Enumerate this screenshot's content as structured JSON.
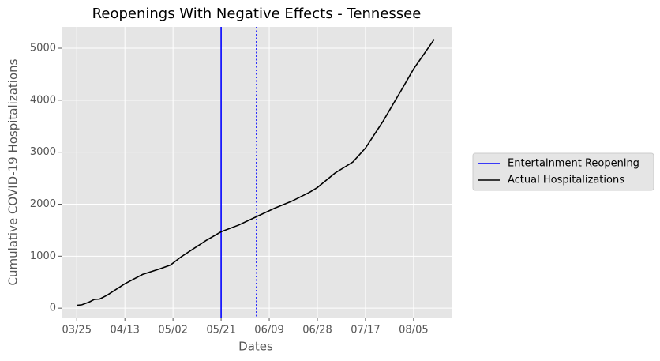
{
  "chart_data": {
    "type": "line",
    "title": "Reopenings With Negative Effects - Tennessee",
    "x_label": "Dates",
    "y_label": "Cumulative COVID-19 Hospitalizations",
    "xlim": [
      "03/19",
      "08/20"
    ],
    "xticks": [
      "03/25",
      "04/13",
      "05/02",
      "05/21",
      "06/09",
      "06/28",
      "07/17",
      "08/05"
    ],
    "ylim": [
      -180,
      5410
    ],
    "yticks": [
      0,
      1000,
      2000,
      3000,
      4000,
      5000
    ],
    "grid": true,
    "legend": "outside right",
    "vlines": [
      {
        "name": "Entertainment Reopening",
        "x": "05/21",
        "color": "#0000ff",
        "style": "solid"
      },
      {
        "x": "06/04",
        "color": "#0000ff",
        "style": "dotted"
      }
    ],
    "series": [
      {
        "name": "Actual Hospitalizations",
        "color": "#000000",
        "x": [
          "03/25",
          "03/27",
          "03/30",
          "04/01",
          "04/03",
          "04/06",
          "04/13",
          "04/20",
          "04/27",
          "05/01",
          "05/05",
          "05/10",
          "05/15",
          "05/21",
          "05/28",
          "06/04",
          "06/11",
          "06/18",
          "06/25",
          "06/28",
          "07/05",
          "07/12",
          "07/17",
          "07/24",
          "07/31",
          "08/05",
          "08/13"
        ],
        "values": [
          55,
          65,
          120,
          170,
          175,
          250,
          470,
          650,
          760,
          830,
          980,
          1140,
          1300,
          1470,
          1600,
          1760,
          1920,
          2060,
          2230,
          2320,
          2600,
          2810,
          3080,
          3600,
          4180,
          4600,
          5160
        ]
      }
    ]
  }
}
